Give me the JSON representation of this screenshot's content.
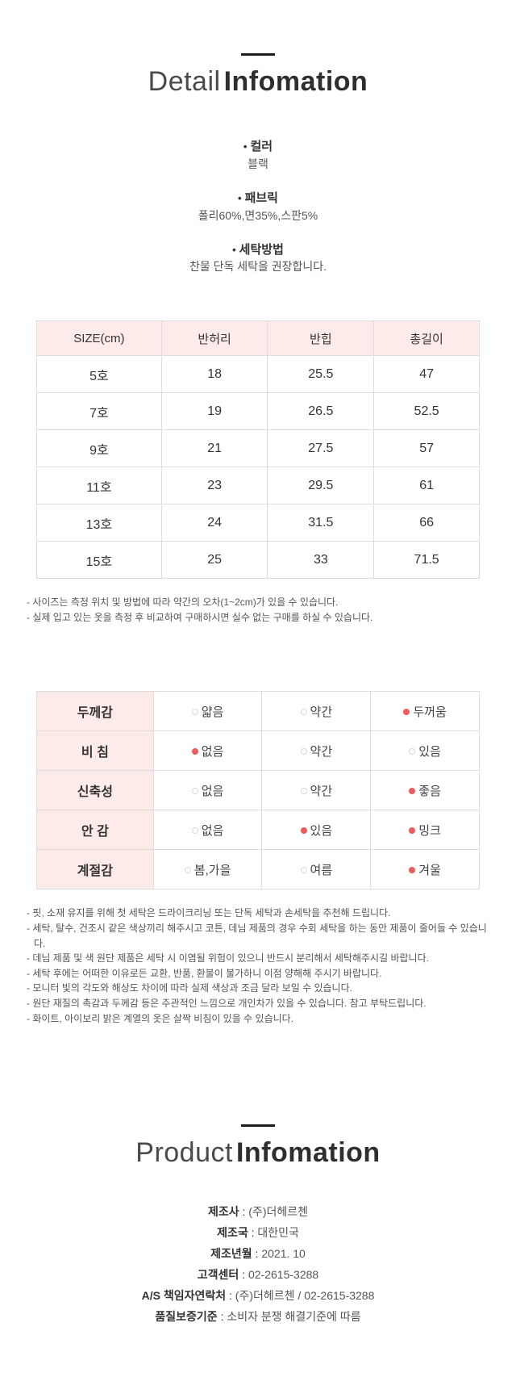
{
  "icons": {
    "bullet": "•"
  },
  "detail_section": {
    "title_light": "Detail",
    "title_bold": "Infomation",
    "info_items": [
      {
        "label": "컬러",
        "value": "블랙"
      },
      {
        "label": "패브릭",
        "value": "폴리60%,면35%,스판5%"
      },
      {
        "label": "세탁방법",
        "value": "찬물 단독 세탁을 권장합니다."
      }
    ]
  },
  "size_table": {
    "headers": [
      "SIZE(cm)",
      "반허리",
      "반힙",
      "총길이"
    ],
    "rows": [
      [
        "5호",
        "18",
        "25.5",
        "47"
      ],
      [
        "7호",
        "19",
        "26.5",
        "52.5"
      ],
      [
        "9호",
        "21",
        "27.5",
        "57"
      ],
      [
        "11호",
        "23",
        "29.5",
        "61"
      ],
      [
        "13호",
        "24",
        "31.5",
        "66"
      ],
      [
        "15호",
        "25",
        "33",
        "71.5"
      ]
    ],
    "notes": [
      "- 사이즈는 측정 위치 및 방법에 따라 약간의 오차(1~2cm)가 있을 수 있습니다.",
      "- 실제 입고 있는 옷을 측정 후 비교하여 구매하시면 실수 없는 구매를 하실 수 있습니다."
    ]
  },
  "attribute_table": {
    "rows": [
      {
        "label": "두께감",
        "options": [
          {
            "text": "얇음",
            "selected": false
          },
          {
            "text": "약간",
            "selected": false
          },
          {
            "text": "두꺼움",
            "selected": true
          }
        ]
      },
      {
        "label": "비 침",
        "options": [
          {
            "text": "없음",
            "selected": true
          },
          {
            "text": "약간",
            "selected": false
          },
          {
            "text": "있음",
            "selected": false
          }
        ]
      },
      {
        "label": "신축성",
        "options": [
          {
            "text": "없음",
            "selected": false
          },
          {
            "text": "약간",
            "selected": false
          },
          {
            "text": "좋음",
            "selected": true
          }
        ]
      },
      {
        "label": "안 감",
        "options": [
          {
            "text": "없음",
            "selected": false
          },
          {
            "text": "있음",
            "selected": true
          },
          {
            "text": "밍크",
            "selected": true
          }
        ]
      },
      {
        "label": "계절감",
        "options": [
          {
            "text": "봄,가을",
            "selected": false
          },
          {
            "text": "여름",
            "selected": false
          },
          {
            "text": "겨울",
            "selected": true
          }
        ]
      }
    ],
    "notes": [
      "- 핏, 소재 유지를 위해 첫 세탁은 드라이크리닝 또는 단독 세탁과 손세탁을 추천해 드립니다.",
      "- 세탁, 탈수, 건조시 같은 색상끼리 해주시고 코튼, 데님 제품의 경우 수회 세탁을 하는 동안 제품이 줄어들 수 있습니다.",
      "- 데님 제품 및 색 원단 제품은 세탁 시 이염될 위험이 있으니 반드시 분리해서 세탁해주시길 바랍니다.",
      "- 세탁 후에는 어떠한 이유로든 교환, 반품, 환불이 불가하니 이점 양해해 주시기 바랍니다.",
      "- 모니터 빛의 각도와 해상도 차이에 따라 실제 색상과 조금 달라 보일 수 있습니다.",
      "- 원단 재질의 촉감과 두께감 등은 주관적인 느낌으로 개인차가 있을 수 있습니다. 참고 부탁드립니다.",
      "- 화이트, 아이보리 밝은 계열의 옷은 살짝 비침이 있을 수 있습니다."
    ]
  },
  "product_section": {
    "title_light": "Product",
    "title_bold": "Infomation",
    "separator": " : ",
    "items": [
      {
        "label": "제조사",
        "value": "(주)더헤르첸"
      },
      {
        "label": "제조국",
        "value": "대한민국"
      },
      {
        "label": "제조년월",
        "value": "2021. 10"
      },
      {
        "label": "고객센터",
        "value": "02-2615-3288"
      },
      {
        "label": "A/S 책임자연락처",
        "value": "(주)더헤르첸 / 02-2615-3288"
      },
      {
        "label": "품질보증기준",
        "value": "소비자 분쟁 해결기준에 따름"
      }
    ]
  },
  "colors": {
    "table_header_bg": "#fcebe8",
    "table_border": "#dddddd",
    "selected_dot": "#ef5a5a",
    "title_dark": "#2e2e2e",
    "note_text": "#555555"
  }
}
